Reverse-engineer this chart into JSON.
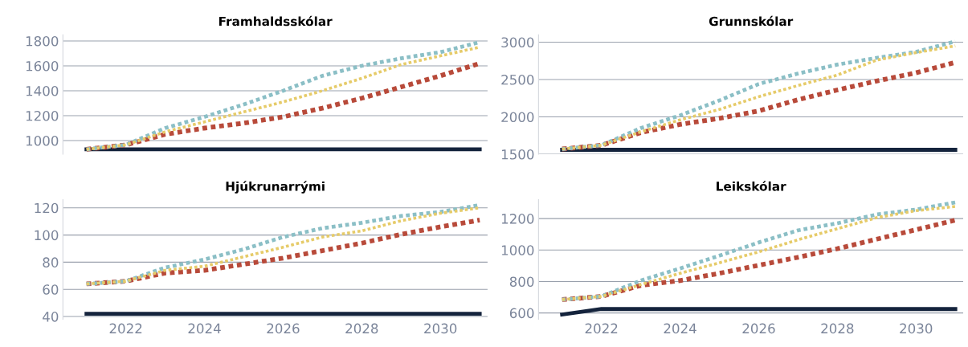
{
  "chart_data": [
    {
      "type": "line",
      "title": "Framhaldsskólar",
      "x": [
        2021,
        2022,
        2023,
        2024,
        2025,
        2026,
        2027,
        2028,
        2029,
        2030,
        2031
      ],
      "ylim": [
        890,
        1850
      ],
      "yticks": [
        1000,
        1200,
        1400,
        1600,
        1800
      ],
      "xlim": [
        2020.4,
        2031.2
      ],
      "xticks": [
        2022,
        2024,
        2026,
        2028,
        2030
      ],
      "tick_labels": "y",
      "grid": "y",
      "series": [
        {
          "color": "#14233c",
          "line_style": "solid",
          "values": [
            930,
            930,
            930,
            930,
            930,
            930,
            930,
            930,
            930,
            930,
            930
          ]
        },
        {
          "color": "#b84a3a",
          "line_style": "dashed",
          "values": [
            930,
            965,
            1050,
            1100,
            1140,
            1190,
            1260,
            1340,
            1430,
            1520,
            1620
          ]
        },
        {
          "color": "#e6cb69",
          "line_style": "dashed",
          "values": [
            930,
            965,
            1070,
            1150,
            1230,
            1310,
            1400,
            1500,
            1610,
            1680,
            1750
          ]
        },
        {
          "color": "#8bbfc6",
          "line_style": "dashed",
          "values": [
            930,
            965,
            1100,
            1190,
            1290,
            1400,
            1520,
            1600,
            1660,
            1710,
            1790
          ]
        }
      ]
    },
    {
      "type": "line",
      "title": "Grunnskólar",
      "x": [
        2021,
        2022,
        2023,
        2024,
        2025,
        2026,
        2027,
        2028,
        2029,
        2030,
        2031
      ],
      "ylim": [
        1500,
        3100
      ],
      "yticks": [
        1500,
        2000,
        2500,
        3000
      ],
      "xlim": [
        2020.4,
        2031.2
      ],
      "xticks": [
        2022,
        2024,
        2026,
        2028,
        2030
      ],
      "tick_labels": "y",
      "grid": "y",
      "series": [
        {
          "color": "#14233c",
          "line_style": "solid",
          "values": [
            1560,
            1560,
            1560,
            1560,
            1560,
            1560,
            1560,
            1560,
            1560,
            1560,
            1560
          ]
        },
        {
          "color": "#b84a3a",
          "line_style": "dashed",
          "values": [
            1570,
            1620,
            1790,
            1900,
            1980,
            2080,
            2230,
            2360,
            2480,
            2590,
            2730
          ]
        },
        {
          "color": "#e6cb69",
          "line_style": "dashed",
          "values": [
            1570,
            1620,
            1800,
            1960,
            2100,
            2270,
            2420,
            2560,
            2760,
            2860,
            2950
          ]
        },
        {
          "color": "#8bbfc6",
          "line_style": "dashed",
          "values": [
            1570,
            1620,
            1850,
            2020,
            2220,
            2440,
            2580,
            2700,
            2790,
            2870,
            3010
          ]
        }
      ]
    },
    {
      "type": "line",
      "title": "Hjúkrunarrými",
      "x": [
        2021,
        2022,
        2023,
        2024,
        2025,
        2026,
        2027,
        2028,
        2029,
        2030,
        2031
      ],
      "ylim": [
        38,
        126
      ],
      "yticks": [
        40,
        60,
        80,
        100,
        120
      ],
      "xlim": [
        2020.4,
        2031.2
      ],
      "xticks": [
        2022,
        2024,
        2026,
        2028,
        2030
      ],
      "grid": "y",
      "series": [
        {
          "color": "#14233c",
          "line_style": "solid",
          "values": [
            42,
            42,
            42,
            42,
            42,
            42,
            42,
            42,
            42,
            42,
            42
          ]
        },
        {
          "color": "#b84a3a",
          "line_style": "dashed",
          "values": [
            64,
            66,
            72,
            74,
            78.5,
            83,
            88.5,
            94,
            100.5,
            106,
            111
          ]
        },
        {
          "color": "#e6cb69",
          "line_style": "dashed",
          "values": [
            64,
            66,
            74,
            77,
            84,
            91,
            98.5,
            103,
            110.5,
            116,
            120
          ]
        },
        {
          "color": "#8bbfc6",
          "line_style": "dashed",
          "values": [
            64,
            66,
            76,
            82,
            89.5,
            98.5,
            105,
            109,
            114,
            117,
            122
          ]
        }
      ]
    },
    {
      "type": "line",
      "title": "Leikskólar",
      "x": [
        2021,
        2022,
        2023,
        2024,
        2025,
        2026,
        2027,
        2028,
        2029,
        2030,
        2031
      ],
      "ylim": [
        560,
        1320
      ],
      "yticks": [
        600,
        800,
        1000,
        1200
      ],
      "xlim": [
        2020.4,
        2031.2
      ],
      "xticks": [
        2022,
        2024,
        2026,
        2028,
        2030
      ],
      "grid": "y",
      "series": [
        {
          "color": "#14233c",
          "line_style": "solid",
          "values": [
            590,
            625,
            625,
            625,
            625,
            625,
            625,
            625,
            625,
            625,
            625
          ]
        },
        {
          "color": "#b84a3a",
          "line_style": "dashed",
          "values": [
            685,
            705,
            775,
            806,
            852,
            903,
            954,
            1008,
            1069,
            1129,
            1190
          ]
        },
        {
          "color": "#e6cb69",
          "line_style": "dashed",
          "values": [
            685,
            705,
            780,
            852,
            919,
            988,
            1065,
            1135,
            1206,
            1250,
            1277
          ]
        },
        {
          "color": "#8bbfc6",
          "line_style": "dashed",
          "values": [
            685,
            705,
            806,
            883,
            964,
            1048,
            1125,
            1170,
            1226,
            1257,
            1303
          ]
        }
      ]
    }
  ]
}
